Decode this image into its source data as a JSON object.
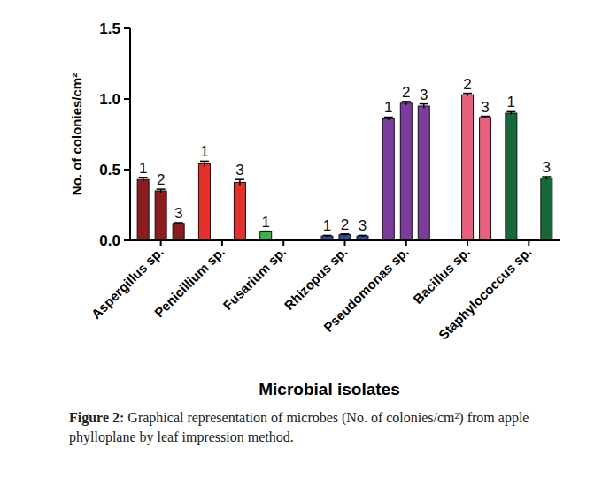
{
  "chart_data": {
    "type": "bar",
    "x_label": "Microbial isolates",
    "y_label": "No. of colonies/cm²",
    "caption_label": "Figure 2:",
    "caption": "Graphical representation of microbes (No. of colonies/cm²) from apple phylloplane by leaf impression method.",
    "categories": [
      "Aspergillus sp.",
      "Penicillium sp.",
      "Fusarium sp.",
      "Rhizopus sp.",
      "Pseudomonas sp.",
      "Bacillus sp.",
      "Staphylococcus sp."
    ],
    "colors": [
      "#8b1c1f",
      "#e5312e",
      "#3bb34a",
      "#2f4d9c",
      "#7b3c9e",
      "#e8607c",
      "#17693a"
    ],
    "series": [
      {
        "name": "1",
        "values": [
          0.43,
          0.54,
          0.06,
          0.03,
          0.86,
          null,
          0.9
        ],
        "errors": [
          0.015,
          0.02,
          0.005,
          0.005,
          0.012,
          null,
          0.01
        ]
      },
      {
        "name": "2",
        "values": [
          0.35,
          null,
          null,
          0.04,
          0.97,
          1.03,
          null
        ],
        "errors": [
          0.012,
          null,
          null,
          0.005,
          0.012,
          0.01,
          null
        ]
      },
      {
        "name": "3",
        "values": [
          0.12,
          0.41,
          null,
          0.03,
          0.95,
          0.87,
          0.44
        ],
        "errors": [
          0.005,
          0.02,
          null,
          0.005,
          0.015,
          0.008,
          0.01
        ]
      }
    ],
    "ylim": [
      0,
      1.5
    ],
    "yticks": [
      {
        "value": 0,
        "label": "0.0"
      },
      {
        "value": 0.5,
        "label": "0.5"
      },
      {
        "value": 1.0,
        "label": "1.0"
      },
      {
        "value": 1.5,
        "label": "1.5"
      }
    ],
    "grid": false,
    "data_labels": false
  }
}
